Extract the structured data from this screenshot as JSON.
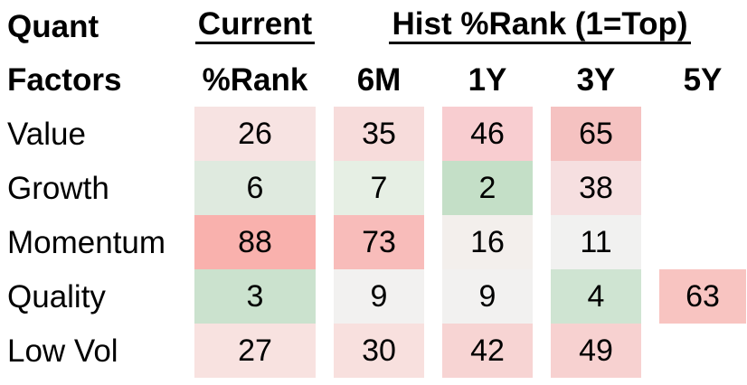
{
  "header": {
    "corner_line1": "Quant",
    "corner_line2": "Factors",
    "current_title": "Current",
    "current_sub": "%Rank",
    "hist_title": "Hist %Rank (1=Top)",
    "period_labels": [
      "6M",
      "1Y",
      "3Y",
      "5Y"
    ]
  },
  "colors": {
    "background": "#ffffff",
    "text": "#000000",
    "green_strong": "#c4dfc7",
    "red_strong": "#f9b1ad",
    "neutral": "#f1f1f0"
  },
  "rows": [
    {
      "label": "Value",
      "cells": [
        {
          "v": "26",
          "bg": "#f7e3e2"
        },
        {
          "v": "35",
          "bg": "#f7dcdb"
        },
        {
          "v": "46",
          "bg": "#f8cdd0"
        },
        {
          "v": "65",
          "bg": "#f5c2c1"
        },
        {
          "v": "",
          "bg": ""
        }
      ]
    },
    {
      "label": "Growth",
      "cells": [
        {
          "v": "6",
          "bg": "#dfeadf"
        },
        {
          "v": "7",
          "bg": "#e6efe4"
        },
        {
          "v": "2",
          "bg": "#c4dfc7"
        },
        {
          "v": "38",
          "bg": "#f6dfe0"
        },
        {
          "v": "",
          "bg": ""
        }
      ]
    },
    {
      "label": "Momentum",
      "cells": [
        {
          "v": "88",
          "bg": "#f9b1ad"
        },
        {
          "v": "73",
          "bg": "#f8bcba"
        },
        {
          "v": "16",
          "bg": "#f3efec"
        },
        {
          "v": "11",
          "bg": "#f1f1f0"
        },
        {
          "v": "",
          "bg": ""
        }
      ]
    },
    {
      "label": "Quality",
      "cells": [
        {
          "v": "3",
          "bg": "#cbe2ce"
        },
        {
          "v": "9",
          "bg": "#f2f1f0"
        },
        {
          "v": "9",
          "bg": "#f2f1f0"
        },
        {
          "v": "4",
          "bg": "#cfe4d2"
        },
        {
          "v": "63",
          "bg": "#f8c4c1"
        }
      ]
    },
    {
      "label": "Low Vol",
      "cells": [
        {
          "v": "27",
          "bg": "#f8e2e0"
        },
        {
          "v": "30",
          "bg": "#f8e0de"
        },
        {
          "v": "42",
          "bg": "#f7d4d3"
        },
        {
          "v": "49",
          "bg": "#f7d1d0"
        },
        {
          "v": "",
          "bg": ""
        }
      ]
    }
  ],
  "chart_data": {
    "type": "heatmap",
    "title": "Quant Factors — Current %Rank and Hist %Rank (1=Top)",
    "row_labels": [
      "Value",
      "Growth",
      "Momentum",
      "Quality",
      "Low Vol"
    ],
    "columns": [
      "Current %Rank",
      "6M",
      "1Y",
      "3Y",
      "5Y"
    ],
    "values": [
      [
        26,
        35,
        46,
        65,
        null
      ],
      [
        6,
        7,
        2,
        38,
        null
      ],
      [
        88,
        73,
        16,
        11,
        null
      ],
      [
        3,
        9,
        9,
        4,
        63
      ],
      [
        27,
        30,
        42,
        49,
        null
      ]
    ],
    "value_range": [
      1,
      100
    ],
    "color_scale": "green at low rank (1=top), white/gray near 10-15, red at high rank"
  }
}
